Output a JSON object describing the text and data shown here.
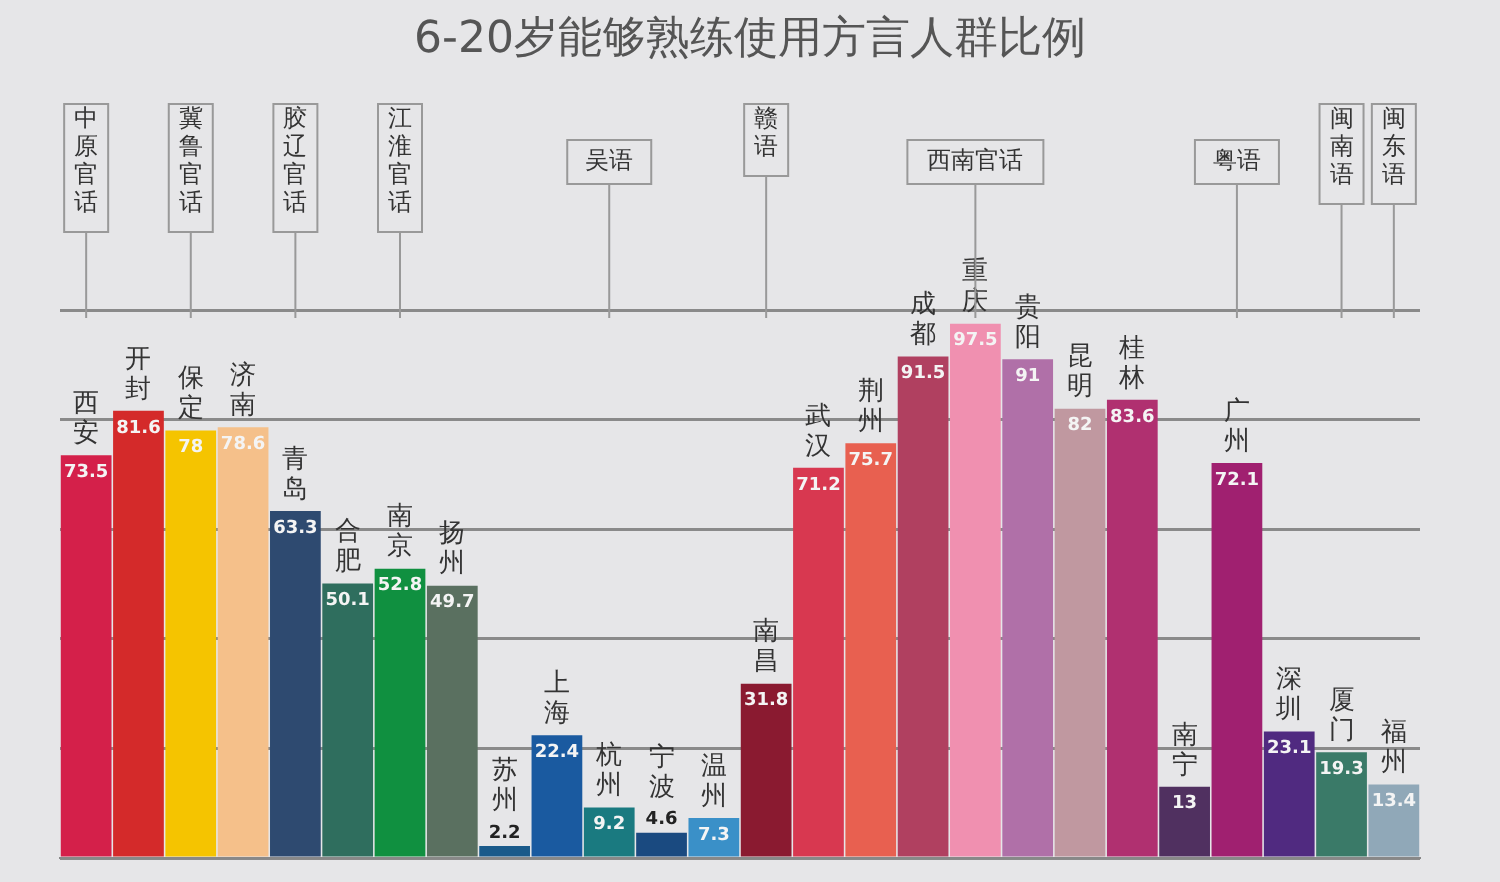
{
  "chart_data": {
    "type": "bar",
    "title": "6-20岁能够熟练使用方言人群比例",
    "categories": [
      "西安",
      "开封",
      "保定",
      "济南",
      "青岛",
      "合肥",
      "南京",
      "扬州",
      "苏州",
      "上海",
      "杭州",
      "宁波",
      "温州",
      "南昌",
      "武汉",
      "荆州",
      "成都",
      "重庆",
      "贵阳",
      "昆明",
      "桂林",
      "南宁",
      "广州",
      "深圳",
      "厦门",
      "福州"
    ],
    "values": [
      73.5,
      81.6,
      78,
      78.6,
      63.3,
      50.1,
      52.8,
      49.7,
      2.2,
      22.4,
      9.2,
      4.6,
      7.3,
      31.8,
      71.2,
      75.7,
      91.5,
      97.5,
      91,
      82,
      83.6,
      13,
      72.1,
      23.1,
      19.3,
      13.4
    ],
    "colors": [
      "#d4204a",
      "#d42a2a",
      "#f5c400",
      "#f5c08a",
      "#2e4a70",
      "#2f6e5e",
      "#109040",
      "#5a7060",
      "#1a5a8a",
      "#1a5aa0",
      "#1a7a80",
      "#1a4a80",
      "#3a90c8",
      "#8a1a30",
      "#d83850",
      "#e86050",
      "#b04060",
      "#f090b0",
      "#b070a8",
      "#c098a0",
      "#b03070",
      "#503060",
      "#a02070",
      "#502a80",
      "#3a7a68",
      "#90a8b8"
    ],
    "ylim": [
      0,
      100
    ],
    "yticks": [
      {
        "value": 0,
        "label": null
      },
      {
        "value": 20,
        "label": null
      },
      {
        "value": 40,
        "label": null
      },
      {
        "value": 60,
        "label": null
      },
      {
        "value": 80,
        "label": null
      },
      {
        "value": 100,
        "label": null
      }
    ],
    "grid": "y",
    "tick_labels": false,
    "data_labels": true,
    "annotations": [
      {
        "text": "中原官话",
        "x": "西安"
      },
      {
        "text": "冀鲁官话",
        "x": "保定"
      },
      {
        "text": "胶辽官话",
        "x": "青岛"
      },
      {
        "text": "江淮官话",
        "x": "南京"
      },
      {
        "text": "吴语",
        "x": "杭州"
      },
      {
        "text": "赣语",
        "x": "南昌"
      },
      {
        "text": "西南官话",
        "x": "重庆"
      },
      {
        "text": "粤语",
        "x": "广州"
      },
      {
        "text": "闽南语",
        "x": "厦门"
      },
      {
        "text": "闽东语",
        "x": "福州"
      }
    ]
  }
}
